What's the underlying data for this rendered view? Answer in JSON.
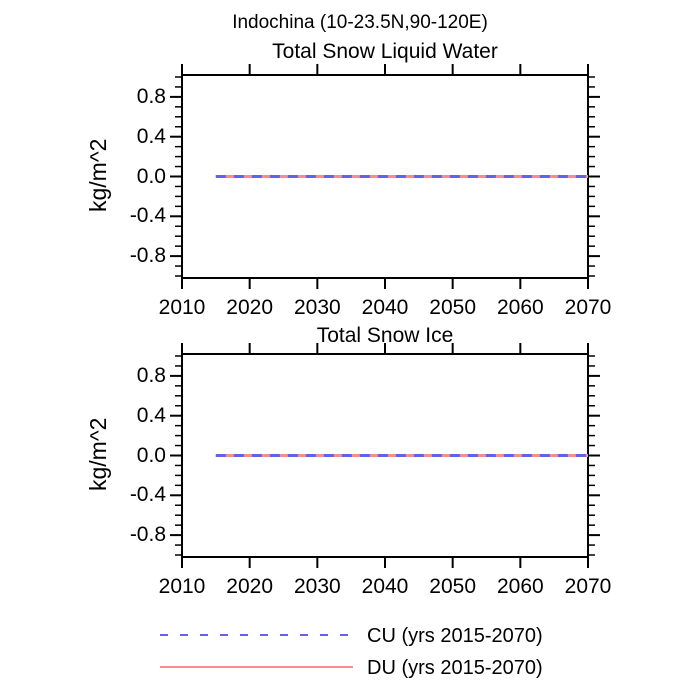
{
  "title": "Indochina (10-23.5N,90-120E)",
  "colors": {
    "cu_blue": "#6262e8",
    "du_red": "#f98d8d",
    "axis": "#000000",
    "background": "#ffffff"
  },
  "legend": {
    "items": [
      {
        "label": "CU (yrs 2015-2070)",
        "style": "dashed",
        "color": "#6262e8"
      },
      {
        "label": "DU (yrs 2015-2070)",
        "style": "solid",
        "color": "#f98d8d"
      }
    ],
    "position": "below-plots"
  },
  "chart_data": [
    {
      "type": "line",
      "title": "Total Snow Liquid Water",
      "xlabel": "",
      "ylabel": "kg/m^2",
      "xlim": [
        2010,
        2070
      ],
      "ylim": [
        -1.02,
        1.02
      ],
      "xticks": [
        2010,
        2020,
        2030,
        2040,
        2050,
        2060,
        2070
      ],
      "yticks": [
        0.8,
        0.4,
        0.0,
        -0.4,
        -0.8
      ],
      "yminor_step": 0.1,
      "yminor_range": [
        -1.0,
        1.0
      ],
      "grid": false,
      "frame": "box-outward-ticks",
      "series": [
        {
          "name": "DU (yrs 2015-2070)",
          "style": "solid",
          "color": "#f98d8d",
          "x": [
            2015,
            2070
          ],
          "y": [
            0.0,
            0.0
          ]
        },
        {
          "name": "CU (yrs 2015-2070)",
          "style": "dashed",
          "color": "#6262e8",
          "x": [
            2015,
            2070
          ],
          "y": [
            0.0,
            0.0
          ]
        }
      ]
    },
    {
      "type": "line",
      "title": "Total Snow Ice",
      "xlabel": "",
      "ylabel": "kg/m^2",
      "xlim": [
        2010,
        2070
      ],
      "ylim": [
        -1.02,
        1.02
      ],
      "xticks": [
        2010,
        2020,
        2030,
        2040,
        2050,
        2060,
        2070
      ],
      "yticks": [
        0.8,
        0.4,
        0.0,
        -0.4,
        -0.8
      ],
      "yminor_step": 0.1,
      "yminor_range": [
        -1.0,
        1.0
      ],
      "grid": false,
      "frame": "box-outward-ticks",
      "series": [
        {
          "name": "DU (yrs 2015-2070)",
          "style": "solid",
          "color": "#f98d8d",
          "x": [
            2015,
            2070
          ],
          "y": [
            0.0,
            0.0
          ]
        },
        {
          "name": "CU (yrs 2015-2070)",
          "style": "dashed",
          "color": "#6262e8",
          "x": [
            2015,
            2070
          ],
          "y": [
            0.0,
            0.0
          ]
        }
      ]
    }
  ]
}
